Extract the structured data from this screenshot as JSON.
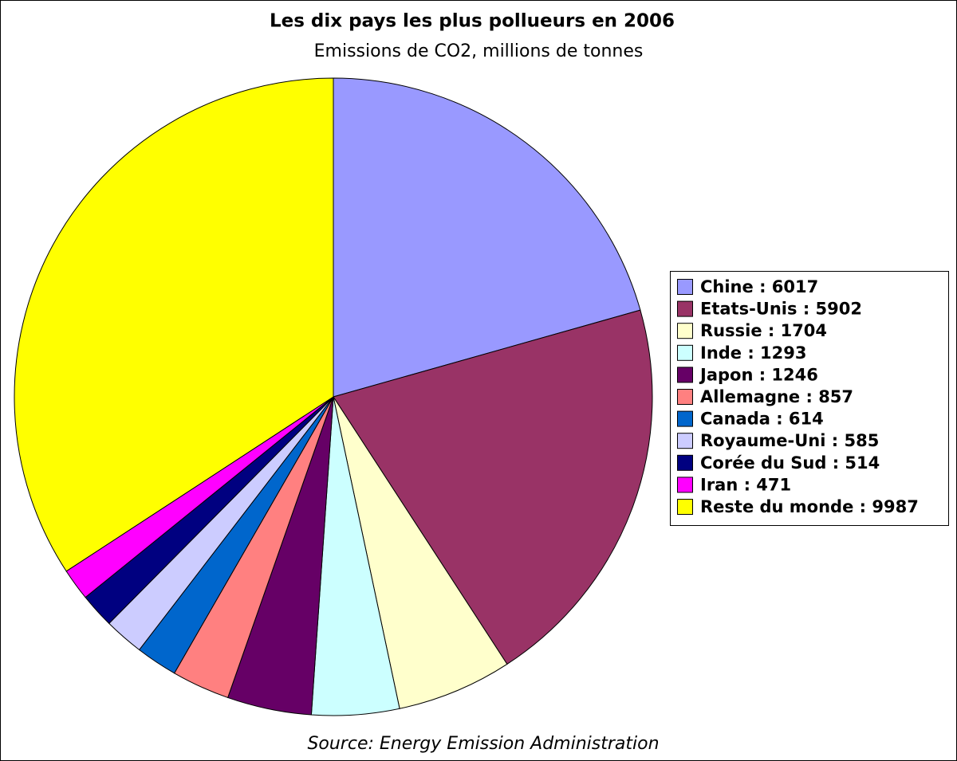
{
  "chart_data": {
    "type": "pie",
    "title": "Les dix pays les plus pollueurs en 2006",
    "subtitle": "Emissions de CO2, millions de tonnes",
    "source": "Source: Energy Emission Administration",
    "labels": [
      "Chine : 6017",
      "Etats-Unis : 5902",
      "Russie : 1704",
      "Inde : 1293",
      "Japon : 1246",
      "Allemagne : 857",
      "Canada : 614",
      "Royaume-Uni : 585",
      "Corée du Sud : 514",
      "Iran : 471",
      "Reste du monde : 9987"
    ],
    "values": [
      6017,
      5902,
      1704,
      1293,
      1246,
      857,
      614,
      585,
      514,
      471,
      9987
    ],
    "colors": [
      "#9999ff",
      "#993366",
      "#ffffcc",
      "#ccffff",
      "#660066",
      "#ff8080",
      "#0066cc",
      "#ccccff",
      "#000080",
      "#ff00ff",
      "#ffff00"
    ],
    "legend": "right"
  }
}
